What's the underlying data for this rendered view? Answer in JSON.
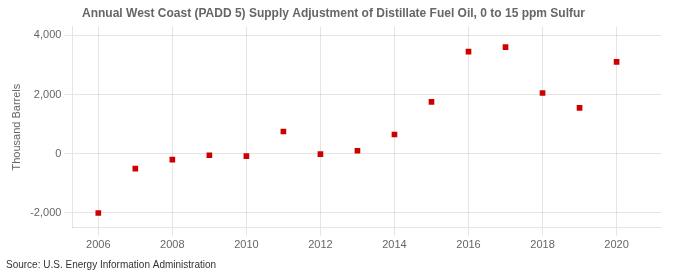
{
  "chart_data": {
    "type": "scatter",
    "title": "Annual West Coast (PADD 5) Supply Adjustment of Distillate Fuel Oil, 0 to 15 ppm Sulfur",
    "ylabel": "Thousand Barrels",
    "annotations": [
      "Source: U.S. Energy Information Administration"
    ],
    "x": [
      2006,
      2007,
      2008,
      2009,
      2010,
      2011,
      2012,
      2013,
      2014,
      2015,
      2016,
      2017,
      2018,
      2019,
      2020
    ],
    "values": [
      -2000,
      -500,
      -200,
      -50,
      -80,
      750,
      -10,
      100,
      650,
      1750,
      3450,
      3600,
      2050,
      1550,
      3100
    ],
    "color": "#cc0000",
    "marker": "square",
    "xlim": [
      2005.3,
      2021.2
    ],
    "xticks": [
      2006,
      2008,
      2010,
      2012,
      2014,
      2016,
      2018,
      2020
    ],
    "ylim": [
      -2500,
      4300
    ],
    "yticks": [
      {
        "value": -2000,
        "label": "-2,000"
      },
      0,
      {
        "value": 2000,
        "label": "2,000"
      },
      {
        "value": 4000,
        "label": "4,000"
      }
    ],
    "grid": true
  }
}
